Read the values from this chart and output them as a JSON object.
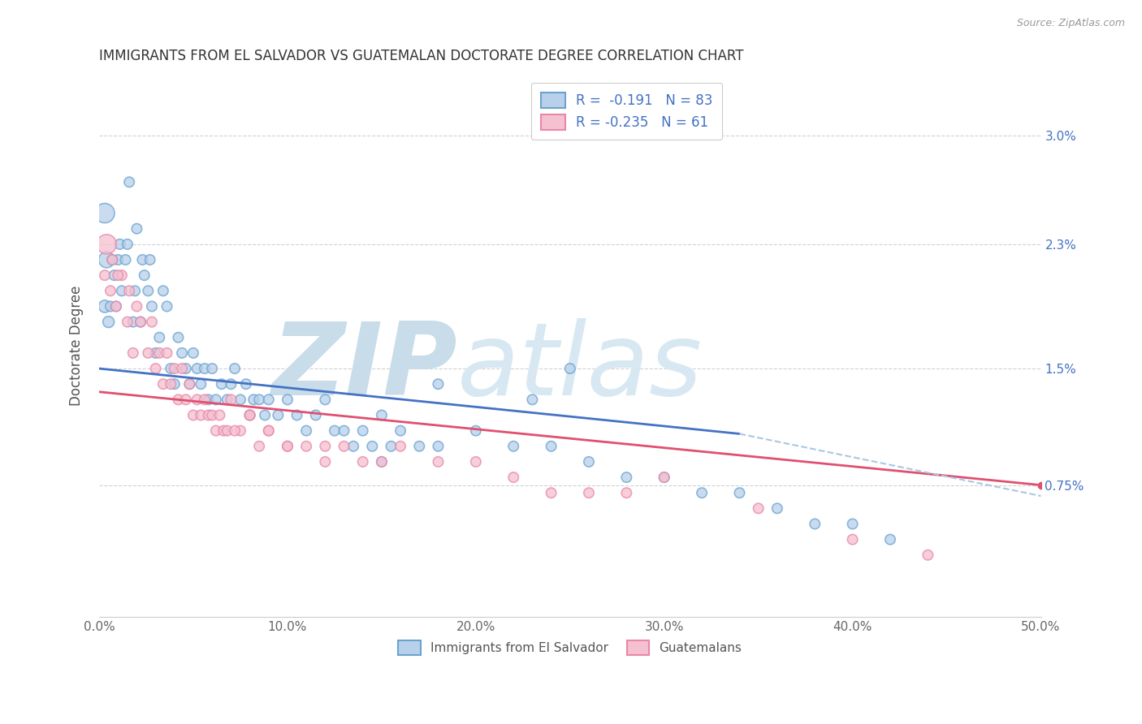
{
  "title": "IMMIGRANTS FROM EL SALVADOR VS GUATEMALAN DOCTORATE DEGREE CORRELATION CHART",
  "source": "Source: ZipAtlas.com",
  "ylabel": "Doctorate Degree",
  "xlim": [
    0.0,
    0.5
  ],
  "ylim": [
    -0.001,
    0.034
  ],
  "xtick_labels": [
    "0.0%",
    "",
    "",
    "",
    "",
    "10.0%",
    "",
    "",
    "",
    "",
    "20.0%",
    "",
    "",
    "",
    "",
    "30.0%",
    "",
    "",
    "",
    "",
    "40.0%",
    "",
    "",
    "",
    "",
    "50.0%"
  ],
  "xtick_vals": [
    0.0,
    0.02,
    0.04,
    0.06,
    0.08,
    0.1,
    0.12,
    0.14,
    0.16,
    0.18,
    0.2,
    0.22,
    0.24,
    0.26,
    0.28,
    0.3,
    0.32,
    0.34,
    0.36,
    0.38,
    0.4,
    0.42,
    0.44,
    0.46,
    0.48,
    0.5
  ],
  "ytick_labels": [
    "0.75%",
    "1.5%",
    "2.3%",
    "3.0%"
  ],
  "ytick_vals": [
    0.0075,
    0.015,
    0.023,
    0.03
  ],
  "legend_blue_rval": "-0.191",
  "legend_blue_nval": "83",
  "legend_pink_rval": "-0.235",
  "legend_pink_nval": "61",
  "legend_label_blue": "Immigrants from El Salvador",
  "legend_label_pink": "Guatemalans",
  "blue_color": "#b8d0ea",
  "blue_edge": "#6ba3d0",
  "pink_color": "#f5c0d0",
  "pink_edge": "#e888a8",
  "blue_line_color": "#4472c4",
  "pink_line_color": "#e05070",
  "dashed_line_color": "#aac8e0",
  "watermark_zip": "ZIP",
  "watermark_atlas": "atlas",
  "watermark_color": "#d5e5f0",
  "background_color": "#ffffff",
  "blue_scatter_x": [
    0.003,
    0.005,
    0.006,
    0.008,
    0.01,
    0.012,
    0.014,
    0.016,
    0.018,
    0.02,
    0.022,
    0.024,
    0.026,
    0.028,
    0.03,
    0.032,
    0.034,
    0.036,
    0.038,
    0.04,
    0.042,
    0.044,
    0.046,
    0.048,
    0.05,
    0.052,
    0.054,
    0.056,
    0.058,
    0.06,
    0.062,
    0.065,
    0.068,
    0.07,
    0.072,
    0.075,
    0.078,
    0.08,
    0.082,
    0.085,
    0.088,
    0.09,
    0.095,
    0.1,
    0.105,
    0.11,
    0.115,
    0.12,
    0.125,
    0.13,
    0.135,
    0.14,
    0.145,
    0.15,
    0.155,
    0.16,
    0.17,
    0.18,
    0.2,
    0.22,
    0.24,
    0.26,
    0.28,
    0.3,
    0.32,
    0.34,
    0.36,
    0.38,
    0.4,
    0.42,
    0.003,
    0.004,
    0.007,
    0.009,
    0.011,
    0.015,
    0.019,
    0.023,
    0.027,
    0.15,
    0.18,
    0.23,
    0.25
  ],
  "blue_scatter_y": [
    0.019,
    0.018,
    0.019,
    0.021,
    0.022,
    0.02,
    0.022,
    0.027,
    0.018,
    0.024,
    0.018,
    0.021,
    0.02,
    0.019,
    0.016,
    0.017,
    0.02,
    0.019,
    0.015,
    0.014,
    0.017,
    0.016,
    0.015,
    0.014,
    0.016,
    0.015,
    0.014,
    0.015,
    0.013,
    0.015,
    0.013,
    0.014,
    0.013,
    0.014,
    0.015,
    0.013,
    0.014,
    0.012,
    0.013,
    0.013,
    0.012,
    0.013,
    0.012,
    0.013,
    0.012,
    0.011,
    0.012,
    0.013,
    0.011,
    0.011,
    0.01,
    0.011,
    0.01,
    0.012,
    0.01,
    0.011,
    0.01,
    0.01,
    0.011,
    0.01,
    0.01,
    0.009,
    0.008,
    0.008,
    0.007,
    0.007,
    0.006,
    0.005,
    0.005,
    0.004,
    0.025,
    0.022,
    0.022,
    0.019,
    0.023,
    0.023,
    0.02,
    0.022,
    0.022,
    0.009,
    0.014,
    0.013,
    0.015
  ],
  "blue_scatter_size": [
    120,
    100,
    80,
    80,
    80,
    80,
    80,
    80,
    80,
    80,
    80,
    80,
    80,
    80,
    80,
    80,
    80,
    80,
    80,
    80,
    80,
    80,
    80,
    80,
    80,
    80,
    80,
    80,
    80,
    80,
    80,
    80,
    80,
    80,
    80,
    80,
    80,
    80,
    80,
    80,
    80,
    80,
    80,
    80,
    80,
    80,
    80,
    80,
    80,
    80,
    80,
    80,
    80,
    80,
    80,
    80,
    80,
    80,
    80,
    80,
    80,
    80,
    80,
    80,
    80,
    80,
    80,
    80,
    80,
    80,
    300,
    200,
    80,
    80,
    80,
    80,
    80,
    80,
    80,
    80,
    80,
    80,
    80
  ],
  "pink_scatter_x": [
    0.003,
    0.006,
    0.009,
    0.012,
    0.015,
    0.018,
    0.022,
    0.026,
    0.03,
    0.034,
    0.038,
    0.042,
    0.046,
    0.05,
    0.054,
    0.058,
    0.062,
    0.066,
    0.07,
    0.075,
    0.08,
    0.085,
    0.09,
    0.1,
    0.11,
    0.12,
    0.13,
    0.14,
    0.15,
    0.16,
    0.18,
    0.2,
    0.22,
    0.24,
    0.26,
    0.28,
    0.3,
    0.35,
    0.4,
    0.44,
    0.004,
    0.007,
    0.01,
    0.016,
    0.02,
    0.028,
    0.032,
    0.036,
    0.04,
    0.044,
    0.048,
    0.052,
    0.056,
    0.06,
    0.064,
    0.068,
    0.072,
    0.08,
    0.09,
    0.1,
    0.12
  ],
  "pink_scatter_y": [
    0.021,
    0.02,
    0.019,
    0.021,
    0.018,
    0.016,
    0.018,
    0.016,
    0.015,
    0.014,
    0.014,
    0.013,
    0.013,
    0.012,
    0.012,
    0.012,
    0.011,
    0.011,
    0.013,
    0.011,
    0.012,
    0.01,
    0.011,
    0.01,
    0.01,
    0.01,
    0.01,
    0.009,
    0.009,
    0.01,
    0.009,
    0.009,
    0.008,
    0.007,
    0.007,
    0.007,
    0.008,
    0.006,
    0.004,
    0.003,
    0.023,
    0.022,
    0.021,
    0.02,
    0.019,
    0.018,
    0.016,
    0.016,
    0.015,
    0.015,
    0.014,
    0.013,
    0.013,
    0.012,
    0.012,
    0.011,
    0.011,
    0.012,
    0.011,
    0.01,
    0.009
  ],
  "pink_scatter_size": [
    80,
    80,
    80,
    80,
    80,
    80,
    80,
    80,
    80,
    80,
    80,
    80,
    80,
    80,
    80,
    80,
    80,
    80,
    80,
    80,
    80,
    80,
    80,
    80,
    80,
    80,
    80,
    80,
    80,
    80,
    80,
    80,
    80,
    80,
    80,
    80,
    80,
    80,
    80,
    80,
    300,
    80,
    80,
    80,
    80,
    80,
    80,
    80,
    80,
    80,
    80,
    80,
    80,
    80,
    80,
    80,
    80,
    80,
    80,
    80,
    80
  ],
  "blue_line_x": [
    0.0,
    0.34
  ],
  "blue_line_y": [
    0.015,
    0.0108
  ],
  "pink_line_x": [
    0.0,
    0.5
  ],
  "pink_line_y": [
    0.0135,
    0.0075
  ],
  "dashed_line_x": [
    0.34,
    0.5
  ],
  "dashed_line_y": [
    0.0108,
    0.0068
  ]
}
